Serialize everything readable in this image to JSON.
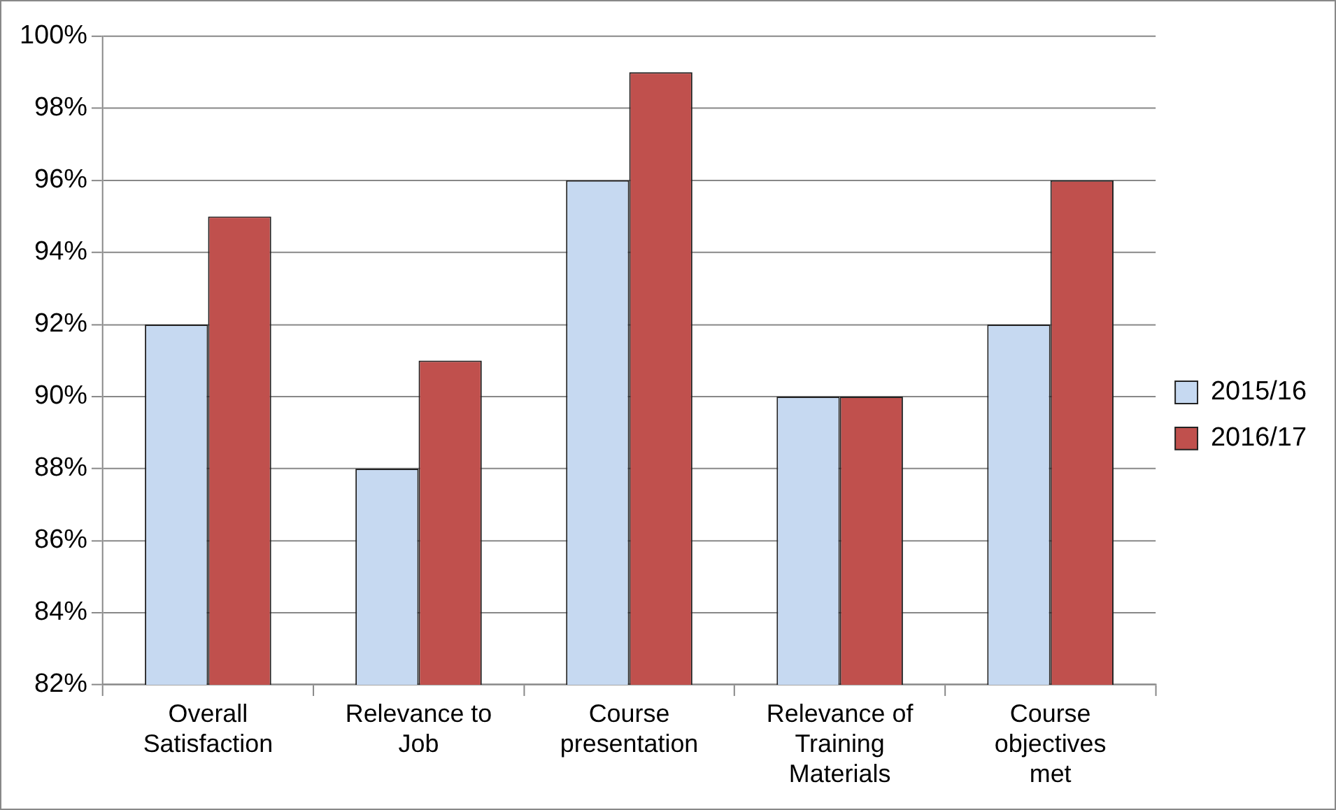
{
  "chart_data": {
    "type": "bar",
    "categories": [
      "Overall Satisfaction",
      "Relevance to Job",
      "Course presentation",
      "Relevance of Training Materials",
      "Course objectives met"
    ],
    "series": [
      {
        "name": "2015/16",
        "color": "#c6d9f1",
        "values": [
          92,
          88,
          96,
          90,
          92
        ]
      },
      {
        "name": "2016/17",
        "color": "#c0504d",
        "values": [
          95,
          91,
          99,
          90,
          96
        ]
      }
    ],
    "ylim": [
      82,
      100
    ],
    "yticks": [
      {
        "value": 82,
        "label": "82%"
      },
      {
        "value": 84,
        "label": "84%"
      },
      {
        "value": 86,
        "label": "86%"
      },
      {
        "value": 88,
        "label": "88%"
      },
      {
        "value": 90,
        "label": "90%"
      },
      {
        "value": 92,
        "label": "92%"
      },
      {
        "value": 94,
        "label": "94%"
      },
      {
        "value": 96,
        "label": "96%"
      },
      {
        "value": 98,
        "label": "98%"
      },
      {
        "value": 100,
        "label": "100%"
      }
    ],
    "grid": "y",
    "legend": "right"
  }
}
